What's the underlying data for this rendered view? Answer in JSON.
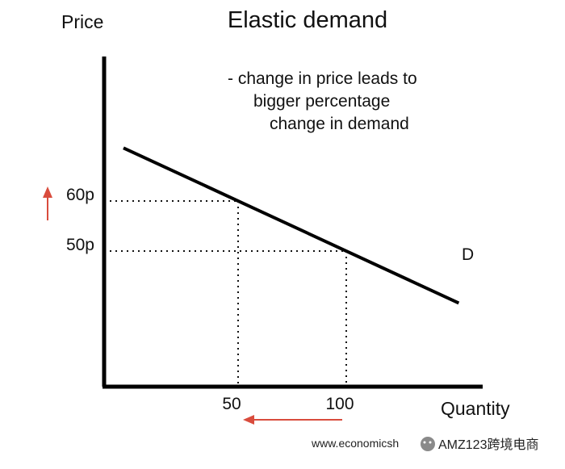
{
  "chart_data": {
    "type": "line",
    "title": "Elastic demand",
    "xlabel": "Quantity",
    "ylabel": "Price",
    "annotation_lines": [
      "- change in price leads to",
      "bigger percentage",
      "change in demand"
    ],
    "series": [
      {
        "name": "D",
        "points": [
          [
            50,
            60
          ],
          [
            100,
            50
          ]
        ]
      }
    ],
    "reference_points": [
      {
        "x": 50,
        "y": 60,
        "x_label": "50",
        "y_label": "60p"
      },
      {
        "x": 100,
        "y": 50,
        "x_label": "100",
        "y_label": "50p"
      }
    ],
    "arrows": [
      {
        "axis": "price",
        "direction": "up",
        "color": "#d94c3d"
      },
      {
        "axis": "quantity",
        "direction": "left",
        "color": "#d94c3d"
      }
    ],
    "line_color": "#000000",
    "guide_style": "dotted"
  },
  "watermark": {
    "site": "www.economicsh",
    "brand": "AMZ123跨境电商"
  }
}
